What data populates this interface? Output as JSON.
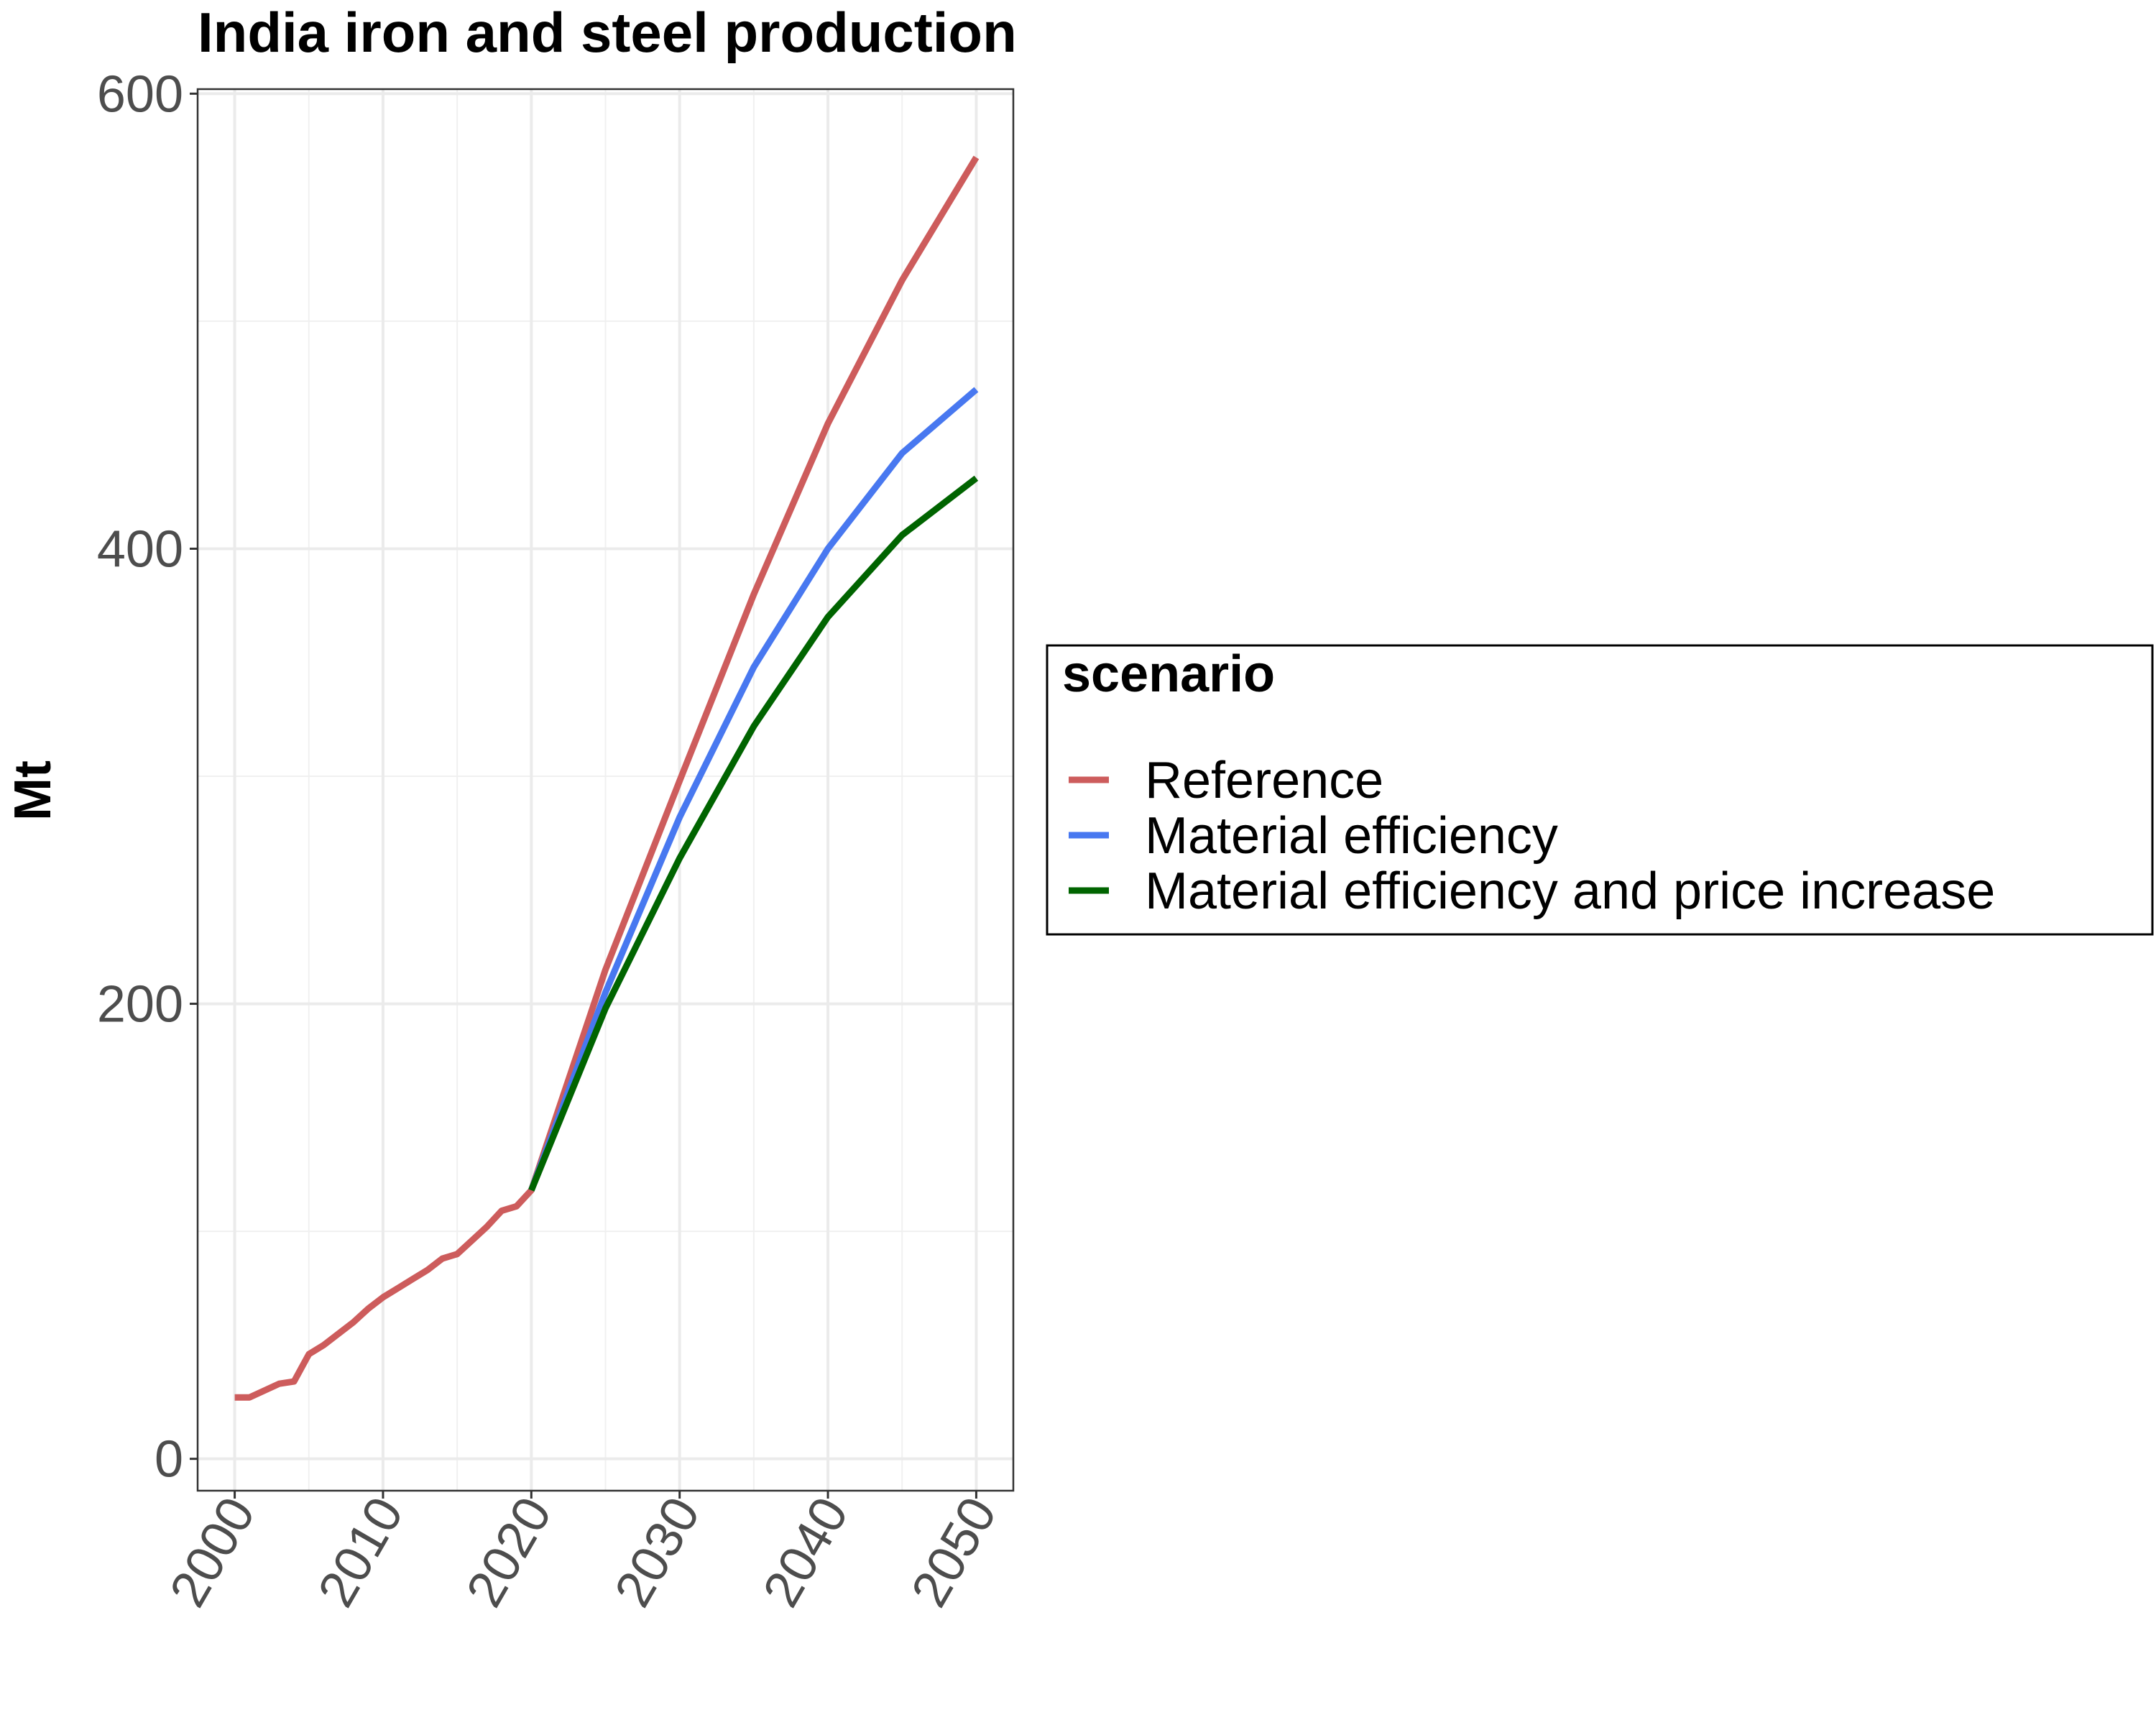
{
  "chart_data": {
    "type": "line",
    "title": "India  iron and steel production",
    "xlabel": "",
    "ylabel": "Mt",
    "xlim": [
      1997.5,
      2052.5
    ],
    "ylim": [
      -14,
      602
    ],
    "x_ticks": [
      "2000",
      "2010",
      "2020",
      "2030",
      "2040",
      "2050"
    ],
    "y_ticks": [
      "0",
      "200",
      "400",
      "600"
    ],
    "grid": true,
    "legend": {
      "title": "scenario",
      "position": "right"
    },
    "series": [
      {
        "name": "Reference",
        "color": "#cd5c5c",
        "x": [
          2000,
          2001,
          2002,
          2003,
          2004,
          2005,
          2006,
          2007,
          2008,
          2009,
          2010,
          2011,
          2012,
          2013,
          2014,
          2015,
          2016,
          2017,
          2018,
          2019,
          2020,
          2025,
          2030,
          2035,
          2040,
          2045,
          2050
        ],
        "y": [
          27,
          27,
          30,
          33,
          34,
          46,
          50,
          55,
          60,
          66,
          71,
          75,
          79,
          83,
          88,
          90,
          96,
          102,
          109,
          111,
          118,
          215,
          298,
          380,
          455,
          518,
          572
        ]
      },
      {
        "name": "Material efficiency",
        "color": "#4878f0",
        "x": [
          2020,
          2025,
          2030,
          2035,
          2040,
          2045,
          2050
        ],
        "y": [
          118,
          205,
          282,
          348,
          400,
          442,
          470
        ]
      },
      {
        "name": "Material efficiency and price increase",
        "color": "#006400",
        "x": [
          2020,
          2025,
          2030,
          2035,
          2040,
          2045,
          2050
        ],
        "y": [
          118,
          198,
          264,
          322,
          370,
          406,
          431
        ]
      }
    ]
  }
}
